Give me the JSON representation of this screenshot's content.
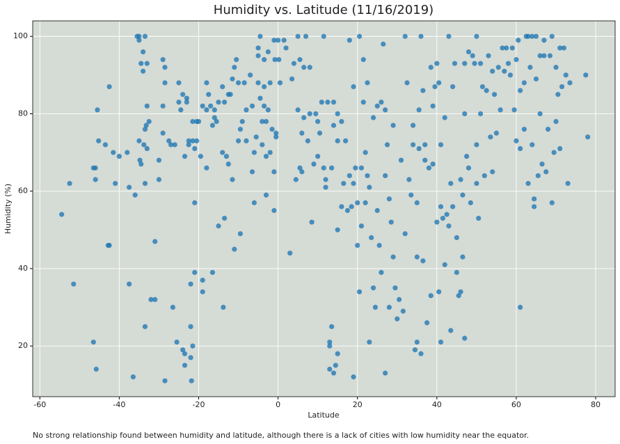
{
  "chart_data": {
    "type": "scatter",
    "title": "Humidity vs. Latitude (11/16/2019)",
    "x_label": "Latitude",
    "y_label": "Humidity (%)",
    "note": "No strong relationship found between humidity and latitude, although there is a lack of cities with low humidity near the equator.",
    "color": "#1f77b4",
    "plot_background": "#d5dbd5",
    "grid": true,
    "xlim": [
      -61.8,
      84.9
    ],
    "ylim": [
      6.9,
      104
    ],
    "xticks": [
      -60,
      -40,
      -20,
      0,
      20,
      40,
      60,
      80
    ],
    "yticks": [
      20,
      40,
      60,
      80,
      100
    ],
    "x": [
      -54.5,
      -52.5,
      -51.5,
      -46.5,
      -46.5,
      -46,
      -46,
      -45.8,
      -45.5,
      -45.2,
      -43.5,
      -42.8,
      -42.5,
      -42.5,
      -41.5,
      -41,
      -40,
      -38,
      -37.5,
      -37.5,
      -36.5,
      -36,
      -35.5,
      -35,
      -35,
      -35,
      -34.8,
      -34.5,
      -34.5,
      -34,
      -34,
      -33.8,
      -33.5,
      -33.5,
      -33.5,
      -33.5,
      -33.2,
      -33,
      -33,
      -33,
      -32.5,
      -32,
      -31,
      -31,
      -30,
      -30,
      -29,
      -29,
      -29,
      -28.5,
      -28.5,
      -28.5,
      -27.5,
      -27,
      -26.5,
      -26,
      -25.5,
      -25,
      -25,
      -24.5,
      -24,
      -24,
      -23.5,
      -23.5,
      -23.5,
      -23,
      -23,
      -22.5,
      -22.5,
      -22,
      -22,
      -22,
      -21.8,
      -21.5,
      -21.5,
      -21.5,
      -21,
      -21,
      -21,
      -20.5,
      -20.5,
      -20,
      -19.5,
      -19,
      -19,
      -19,
      -18,
      -18,
      -18,
      -17.5,
      -17,
      -16.5,
      -16.5,
      -16,
      -16,
      -15.5,
      -15,
      -15,
      -14,
      -14,
      -13.8,
      -13.5,
      -13.5,
      -13,
      -12.5,
      -12.5,
      -12,
      -11.5,
      -11.5,
      -11,
      -11,
      -10.5,
      -10,
      -10,
      -9.5,
      -9.5,
      -9,
      -8.5,
      -8,
      -8,
      -7,
      -6.5,
      -6.5,
      -6,
      -6,
      -5.5,
      -5,
      -5,
      -5,
      -4.5,
      -4.5,
      -4,
      -4,
      -3.5,
      -3.5,
      -3.5,
      -3,
      -3,
      -3,
      -2.5,
      -2.5,
      -2,
      -2,
      -1.5,
      -1,
      -1,
      -1,
      -0.8,
      -0.5,
      -0.5,
      0,
      0.2,
      0.5,
      1.5,
      2,
      3,
      3.5,
      4,
      4.5,
      5,
      5,
      5.5,
      5.5,
      6,
      6,
      6.5,
      6.5,
      7,
      7.5,
      8,
      8,
      8.5,
      9,
      9.5,
      10,
      10,
      10.5,
      11,
      11.5,
      11.5,
      12,
      12,
      12.5,
      13,
      13,
      13,
      13.5,
      13.5,
      14,
      14,
      14,
      14.5,
      15,
      15,
      15,
      15,
      16,
      16,
      16.5,
      17,
      17.5,
      18,
      18,
      18.5,
      19,
      19,
      19,
      19.5,
      20,
      20,
      20.5,
      20.5,
      21,
      21,
      21.5,
      21.5,
      22,
      22,
      22.5,
      22.5,
      23,
      23,
      23.5,
      24,
      24,
      24.5,
      25,
      25,
      25.5,
      26,
      26,
      26.5,
      27,
      27,
      27,
      27.5,
      28,
      28,
      28.5,
      29,
      29,
      29.5,
      30,
      30.5,
      31,
      31.5,
      32,
      32,
      32.5,
      33,
      33.5,
      34,
      34,
      34.5,
      35,
      35,
      35,
      35.5,
      35.5,
      36,
      36,
      36.5,
      36.5,
      37,
      37,
      37.5,
      38,
      38.5,
      38.5,
      39,
      39,
      39.5,
      40,
      40,
      40.5,
      40.5,
      41,
      41,
      41,
      41.5,
      42,
      42,
      42.5,
      43,
      43,
      43.5,
      43.5,
      44,
      44,
      44.5,
      45,
      45,
      45.5,
      46,
      46,
      46.5,
      46.5,
      47,
      47,
      47,
      47.5,
      48,
      48,
      48.5,
      49,
      49.5,
      50,
      50,
      50,
      50.5,
      51,
      51,
      51.5,
      52,
      52.5,
      53,
      53.5,
      54,
      54,
      54.5,
      55,
      55.5,
      56,
      56.5,
      57,
      57.5,
      58,
      58.5,
      59,
      59.5,
      60,
      60,
      60.5,
      61,
      61,
      61,
      62,
      62,
      62.5,
      63,
      63,
      63.5,
      64,
      64,
      64.5,
      64.5,
      65,
      65,
      65.5,
      66,
      66,
      66.5,
      67,
      67,
      67.5,
      68,
      68.5,
      69,
      69,
      69.5,
      70,
      70,
      70.5,
      71,
      71,
      71.5,
      72,
      72.5,
      73,
      73.5,
      77.5,
      78
    ],
    "values": [
      54,
      62,
      36,
      66,
      21,
      63,
      66,
      14,
      81,
      73,
      72,
      46,
      46,
      87,
      70,
      62,
      69,
      70,
      36,
      61,
      12,
      59,
      100,
      100,
      99,
      73,
      68,
      67,
      93,
      96,
      91,
      72,
      76,
      62,
      25,
      100,
      77,
      82,
      93,
      71,
      78,
      32,
      32,
      47,
      63,
      68,
      94,
      82,
      75,
      11,
      92,
      88,
      73,
      72,
      30,
      72,
      21,
      83,
      88,
      81,
      85,
      19,
      15,
      18,
      69,
      84,
      83,
      72,
      73,
      25,
      17,
      36,
      11,
      20,
      73,
      78,
      71,
      57,
      39,
      73,
      78,
      78,
      69,
      34,
      37,
      82,
      88,
      66,
      81,
      85,
      82,
      77,
      39,
      81,
      79,
      78,
      51,
      83,
      87,
      70,
      30,
      53,
      83,
      69,
      67,
      85,
      85,
      89,
      63,
      45,
      92,
      94,
      73,
      88,
      49,
      76,
      78,
      88,
      73,
      81,
      90,
      65,
      82,
      70,
      57,
      74,
      95,
      88,
      97,
      100,
      84,
      72,
      78,
      87,
      82,
      94,
      59,
      69,
      78,
      81,
      96,
      70,
      88,
      76,
      99,
      55,
      65,
      94,
      75,
      74,
      99,
      94,
      88,
      99,
      97,
      44,
      89,
      93,
      63,
      100,
      81,
      94,
      66,
      65,
      75,
      92,
      79,
      100,
      73,
      80,
      92,
      52,
      67,
      80,
      69,
      78,
      75,
      83,
      100,
      66,
      61,
      63,
      83,
      21,
      20,
      14,
      25,
      66,
      13,
      77,
      83,
      15,
      18,
      73,
      80,
      50,
      56,
      78,
      62,
      73,
      55,
      64,
      99,
      56,
      87,
      12,
      62,
      66,
      57,
      46,
      100,
      34,
      51,
      66,
      94,
      83,
      70,
      57,
      88,
      64,
      21,
      61,
      48,
      79,
      35,
      30,
      55,
      82,
      46,
      83,
      39,
      98,
      64,
      13,
      81,
      72,
      30,
      58,
      52,
      43,
      77,
      35,
      27,
      32,
      68,
      29,
      100,
      49,
      88,
      63,
      59,
      72,
      77,
      19,
      21,
      43,
      57,
      81,
      71,
      100,
      18,
      42,
      86,
      68,
      72,
      26,
      66,
      92,
      33,
      67,
      82,
      87,
      93,
      52,
      34,
      88,
      21,
      56,
      72,
      53,
      79,
      41,
      54,
      100,
      51,
      24,
      62,
      87,
      56,
      93,
      48,
      39,
      33,
      34,
      63,
      43,
      59,
      22,
      80,
      93,
      69,
      66,
      96,
      57,
      95,
      93,
      100,
      62,
      72,
      53,
      93,
      80,
      87,
      64,
      86,
      95,
      74,
      91,
      65,
      85,
      75,
      92,
      81,
      97,
      91,
      97,
      93,
      90,
      97,
      81,
      94,
      73,
      99,
      86,
      30,
      71,
      88,
      76,
      100,
      100,
      62,
      92,
      100,
      72,
      56,
      58,
      100,
      89,
      64,
      95,
      80,
      67,
      99,
      95,
      65,
      76,
      95,
      100,
      57,
      70,
      92,
      78,
      85,
      71,
      97,
      87,
      97,
      90,
      62,
      88,
      90,
      74
    ]
  }
}
